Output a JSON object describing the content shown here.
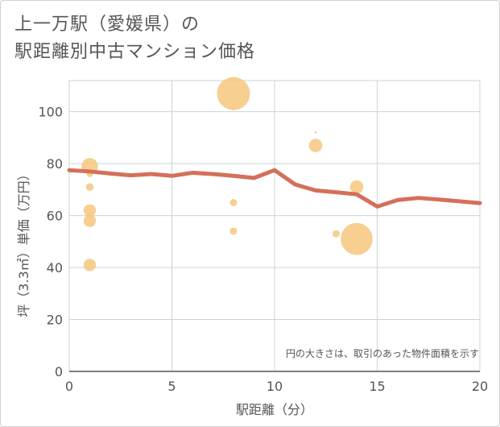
{
  "chart_data": {
    "type": "scatter",
    "title_lines": [
      "上一万駅（愛媛県）の",
      "駅距離別中古マンション価格"
    ],
    "xlabel": "駅距離（分）",
    "ylabel": "坪（3.3㎡）単価（万円）",
    "xlim": [
      0,
      20
    ],
    "ylim": [
      0,
      112
    ],
    "xticks": [
      0,
      5,
      10,
      15,
      20
    ],
    "yticks": [
      0,
      20,
      40,
      60,
      80,
      100
    ],
    "note": "円の大きさは、取引のあった物件面積を示す",
    "bubble_color": "#f5c77e",
    "line_color": "#d4705a",
    "bubbles": [
      {
        "x": 1,
        "y": 79,
        "size": 3.2
      },
      {
        "x": 1,
        "y": 76,
        "size": 1.2
      },
      {
        "x": 1,
        "y": 71,
        "size": 1.5
      },
      {
        "x": 1,
        "y": 62,
        "size": 2.4
      },
      {
        "x": 1,
        "y": 58,
        "size": 2.4
      },
      {
        "x": 1,
        "y": 41,
        "size": 2.4
      },
      {
        "x": 8,
        "y": 107,
        "size": 6.4
      },
      {
        "x": 8,
        "y": 101,
        "size": 0.5
      },
      {
        "x": 8,
        "y": 65,
        "size": 1.4
      },
      {
        "x": 8,
        "y": 54,
        "size": 1.4
      },
      {
        "x": 12,
        "y": 92,
        "size": 0.4
      },
      {
        "x": 12,
        "y": 87,
        "size": 2.6
      },
      {
        "x": 13,
        "y": 53,
        "size": 1.4
      },
      {
        "x": 14,
        "y": 71,
        "size": 2.6
      },
      {
        "x": 14,
        "y": 51,
        "size": 6.2
      }
    ],
    "trend_line": {
      "x": [
        0,
        1,
        2,
        3,
        4,
        5,
        6,
        7,
        8,
        9,
        10,
        11,
        12,
        13,
        14,
        15,
        16,
        17,
        18,
        19,
        20
      ],
      "y": [
        77.5,
        77,
        76.2,
        75.5,
        76,
        75.3,
        76.5,
        76,
        75.3,
        74.5,
        77.5,
        72,
        69.7,
        69,
        68.2,
        63.5,
        66,
        66.8,
        66.2,
        65.5,
        64.8
      ]
    }
  }
}
